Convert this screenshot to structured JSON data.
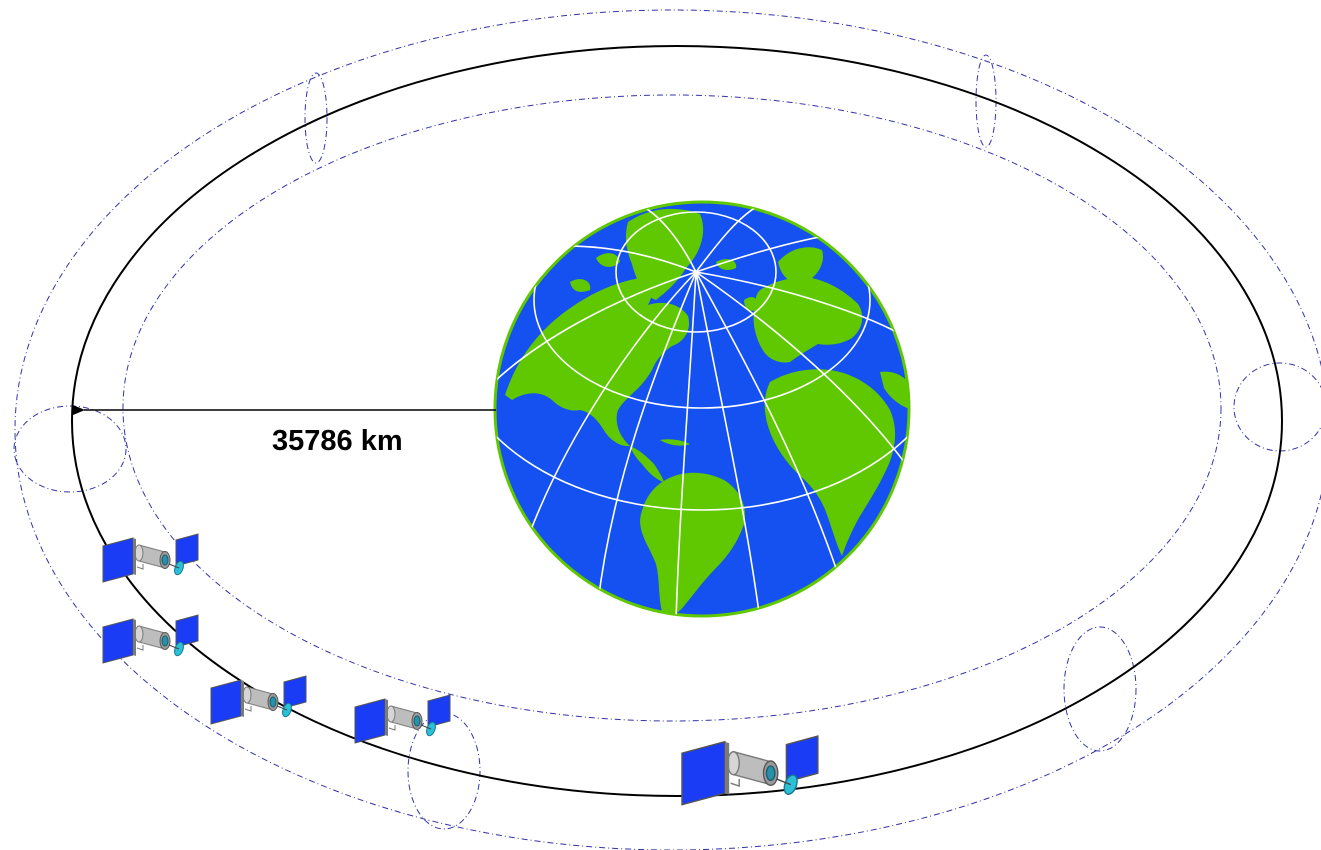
{
  "diagram": {
    "distance_label": "35786 km",
    "colors": {
      "orbit": "#000000",
      "orbit_band": "#3333aa",
      "ocean": "#1550f0",
      "land": "#5fc800",
      "grid": "#ffffff",
      "panel": "#1a3cf5",
      "satellite_body": "#b8b8b8",
      "antenna": "#22a8c8"
    },
    "icons": [
      "earth-globe",
      "satellite"
    ],
    "satellite_count": 5
  }
}
